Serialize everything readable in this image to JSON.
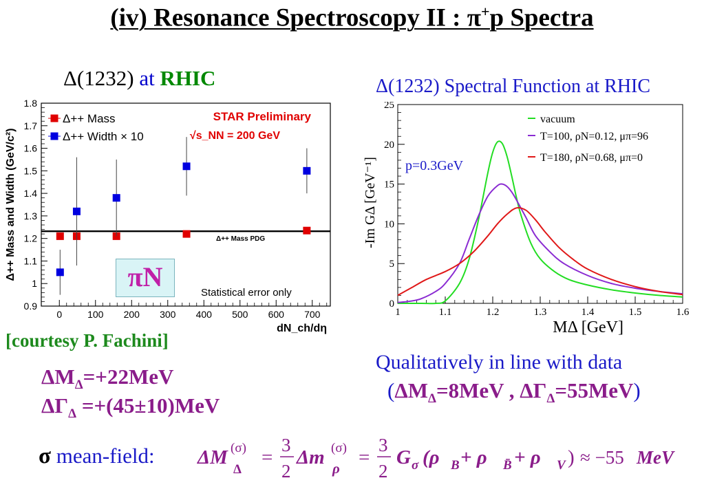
{
  "slide": {
    "title_prefix": "(iv)  Resonance Spectroscopy II : π",
    "title_sup": "+",
    "title_suffix": "p Spectra",
    "left_heading": {
      "delta": "Δ(1232)",
      "at": " at ",
      "rhic": "RHIC"
    },
    "right_heading": "Δ(1232) Spectral Function at RHIC",
    "courtesy": "[courtesy P. Fachini]",
    "result_mass": {
      "pre": "ΔM",
      "sub": "Δ",
      "post": "=+22MeV"
    },
    "result_width": {
      "pre": "ΔΓ",
      "sub": "Δ",
      "post": " =+(45±10)MeV"
    },
    "qualitative_line1": "Qualitatively in line with data",
    "qualitative_line2": {
      "open": "(",
      "m_pre": "ΔM",
      "m_sub": "Δ",
      "m_post": "=8MeV , ",
      "g_pre": "ΔΓ",
      "g_sub": "Δ",
      "g_post": "=55MeV",
      "close": ")"
    },
    "meanfield_sigma": "σ",
    "meanfield_label": " mean-field:",
    "meanfield_equation": {
      "lhs": "ΔM",
      "lhs_sup": "(σ)",
      "lhs_sub": "Δ",
      "eq1": "=",
      "frac_num": "3",
      "frac_den": "2",
      "mid": "Δm",
      "mid_sup": "(σ)",
      "mid_sub": "ρ",
      "eq2": "=",
      "rhs_g": "G",
      "rhs_g_sub": "σ",
      "rhs_body": "(ρ",
      "rho_b_sub": "B",
      "plus1": " + ρ",
      "rho_bbar_sub": "B̄",
      "plus2": " + ρ",
      "rho_v_sub": "V",
      "close": ")",
      "approx": "≈ −55",
      "unit": "MeV"
    },
    "pi_n_label": "πN"
  },
  "chart_data": [
    {
      "type": "scatter",
      "title": "",
      "xlabel": "dN_ch/dη",
      "ylabel": "Δ++ Mass and Width (GeV/c²)",
      "xlim": [
        -50,
        750
      ],
      "ylim": [
        0.9,
        1.8
      ],
      "x_ticks": [
        "0",
        "100",
        "200",
        "300",
        "400",
        "500",
        "600",
        "700"
      ],
      "y_ticks": [
        "0.9",
        "1",
        "1.1",
        "1.2",
        "1.3",
        "1.4",
        "1.5",
        "1.6",
        "1.7",
        "1.8"
      ],
      "legend_placement": "top-left",
      "annotations": [
        "STAR Preliminary",
        "√s_NN = 200 GeV",
        "Δ++ Mass PDG",
        "Statistical error only"
      ],
      "reference_line": {
        "label": "Δ++ Mass PDG",
        "y": 1.232
      },
      "series": [
        {
          "name": "Δ++ Mass",
          "color": "#e00000",
          "x": [
            2,
            48,
            158,
            352,
            685
          ],
          "y": [
            1.21,
            1.21,
            1.21,
            1.22,
            1.235
          ],
          "err": [
            0.0,
            0.0,
            0.0,
            0.0,
            0.0
          ]
        },
        {
          "name": "Δ++ Width × 10",
          "color": "#0000e0",
          "x": [
            2,
            48,
            158,
            352,
            685
          ],
          "y": [
            1.05,
            1.32,
            1.38,
            1.52,
            1.5
          ],
          "err": [
            0.1,
            0.24,
            0.17,
            0.13,
            0.1
          ]
        }
      ]
    },
    {
      "type": "line",
      "title": "",
      "xlabel": "MΔ  [GeV]",
      "ylabel": "-Im GΔ  [GeV⁻¹]",
      "xlim": [
        1.0,
        1.6
      ],
      "ylim": [
        0,
        25
      ],
      "x_ticks": [
        "1",
        "1.1",
        "1.2",
        "1.3",
        "1.4",
        "1.5",
        "1.6"
      ],
      "y_ticks": [
        "0",
        "5",
        "10",
        "15",
        "20",
        "25"
      ],
      "annotation": "p=0.3GeV",
      "legend_placement": "top-right",
      "series": [
        {
          "name": "vacuum",
          "color": "#22dd22",
          "x": [
            1.0,
            1.05,
            1.08,
            1.1,
            1.13,
            1.15,
            1.17,
            1.19,
            1.2,
            1.21,
            1.22,
            1.23,
            1.24,
            1.25,
            1.26,
            1.28,
            1.3,
            1.33,
            1.36,
            1.4,
            1.45,
            1.5,
            1.55,
            1.6
          ],
          "y": [
            0,
            0,
            0,
            0.3,
            2.5,
            5.5,
            10.5,
            16.5,
            19.0,
            20.3,
            20.1,
            18.5,
            16.0,
            13.3,
            11.0,
            7.6,
            5.6,
            4.0,
            3.0,
            2.3,
            1.7,
            1.3,
            1.0,
            0.8
          ]
        },
        {
          "name": "T=100, ρN=0.12, μπ=96",
          "color": "#8a2bd2",
          "x": [
            1.0,
            1.03,
            1.05,
            1.08,
            1.1,
            1.13,
            1.15,
            1.17,
            1.19,
            1.21,
            1.22,
            1.23,
            1.24,
            1.25,
            1.27,
            1.29,
            1.32,
            1.35,
            1.4,
            1.45,
            1.5,
            1.55,
            1.6
          ],
          "y": [
            0.1,
            0.3,
            0.6,
            1.5,
            2.5,
            5.0,
            8.0,
            11.0,
            13.5,
            14.8,
            15.0,
            14.7,
            14.0,
            13.0,
            10.8,
            8.5,
            6.5,
            5.0,
            3.5,
            2.5,
            1.9,
            1.5,
            1.2
          ]
        },
        {
          "name": "T=180, ρN=0.68, μπ=0",
          "color": "#e01818",
          "x": [
            1.0,
            1.03,
            1.06,
            1.1,
            1.13,
            1.16,
            1.19,
            1.21,
            1.23,
            1.25,
            1.27,
            1.29,
            1.31,
            1.34,
            1.37,
            1.4,
            1.45,
            1.5,
            1.55,
            1.6
          ],
          "y": [
            1.0,
            2.0,
            3.0,
            4.0,
            5.0,
            6.5,
            8.5,
            10.0,
            11.2,
            12.0,
            11.7,
            10.5,
            9.0,
            7.0,
            5.5,
            4.3,
            3.0,
            2.1,
            1.5,
            1.1
          ]
        }
      ]
    }
  ]
}
